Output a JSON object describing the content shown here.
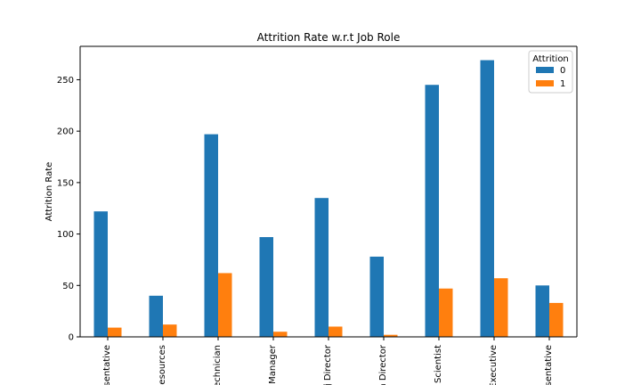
{
  "chart_data": {
    "type": "bar",
    "title": "Attrition Rate w.r.t Job Role",
    "xlabel": "",
    "ylabel": "Attrition Rate",
    "categories": [
      "Sales Representative",
      "Human Resources",
      "Laboratory Technician",
      "Manager",
      "Manufacturing Director",
      "Research Director",
      "Research Scientist",
      "Sales Executive",
      "Healthcare Representative"
    ],
    "visible_tick_labels": [
      "esentative",
      "esources",
      "echnician",
      "Manager",
      "j Director",
      "h Director",
      "Scientist",
      "Executive",
      "esentative"
    ],
    "series": [
      {
        "name": "0",
        "color": "#1f77b4",
        "values": [
          122,
          40,
          197,
          97,
          135,
          78,
          245,
          269,
          50
        ]
      },
      {
        "name": "1",
        "color": "#ff7f0e",
        "values": [
          9,
          12,
          62,
          5,
          10,
          2,
          47,
          57,
          33
        ]
      }
    ],
    "ylim": [
      0,
      282.45
    ],
    "yticks": [
      0,
      50,
      100,
      150,
      200,
      250
    ],
    "legend": {
      "title": "Attrition",
      "position": "top-right"
    },
    "grid": false
  }
}
